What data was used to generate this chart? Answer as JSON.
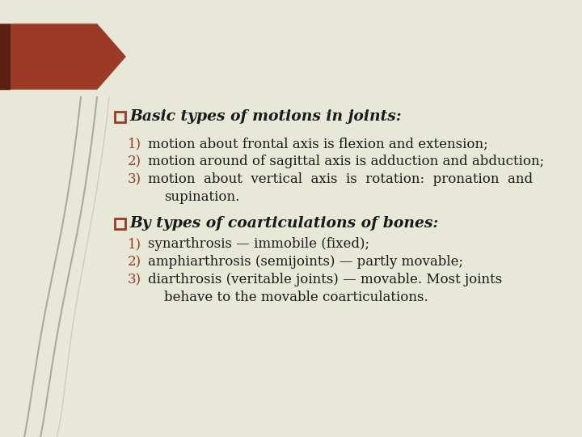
{
  "background_color": "#e8e8d8",
  "arrow_color": "#9b3a25",
  "checkbox_color": "#9b3a25",
  "number_color": "#9b3a25",
  "text_color": "#1a1a1a",
  "line_color": "#a0998a",
  "title1": "Basic types of motions in joints:",
  "items1_plain": [
    "motion about frontal axis is flexion and extension;",
    "motion around of sagittal axis is adduction and abduction;"
  ],
  "item1_wrapped_line1": "motion  about  vertical  axis  is  rotation:  pronation  and",
  "item1_wrapped_line2": "supination.",
  "title2": "By types of coarticulations of bones:",
  "items2_plain": [
    "synarthrosis — immobile (fixed);",
    "amphiarthrosis (semijoints) — partly movable;"
  ],
  "item2_wrapped_line1": "diarthrosis (veritable joints) — movable. Most joints",
  "item2_wrapped_line2": "behave to the movable coarticulations."
}
